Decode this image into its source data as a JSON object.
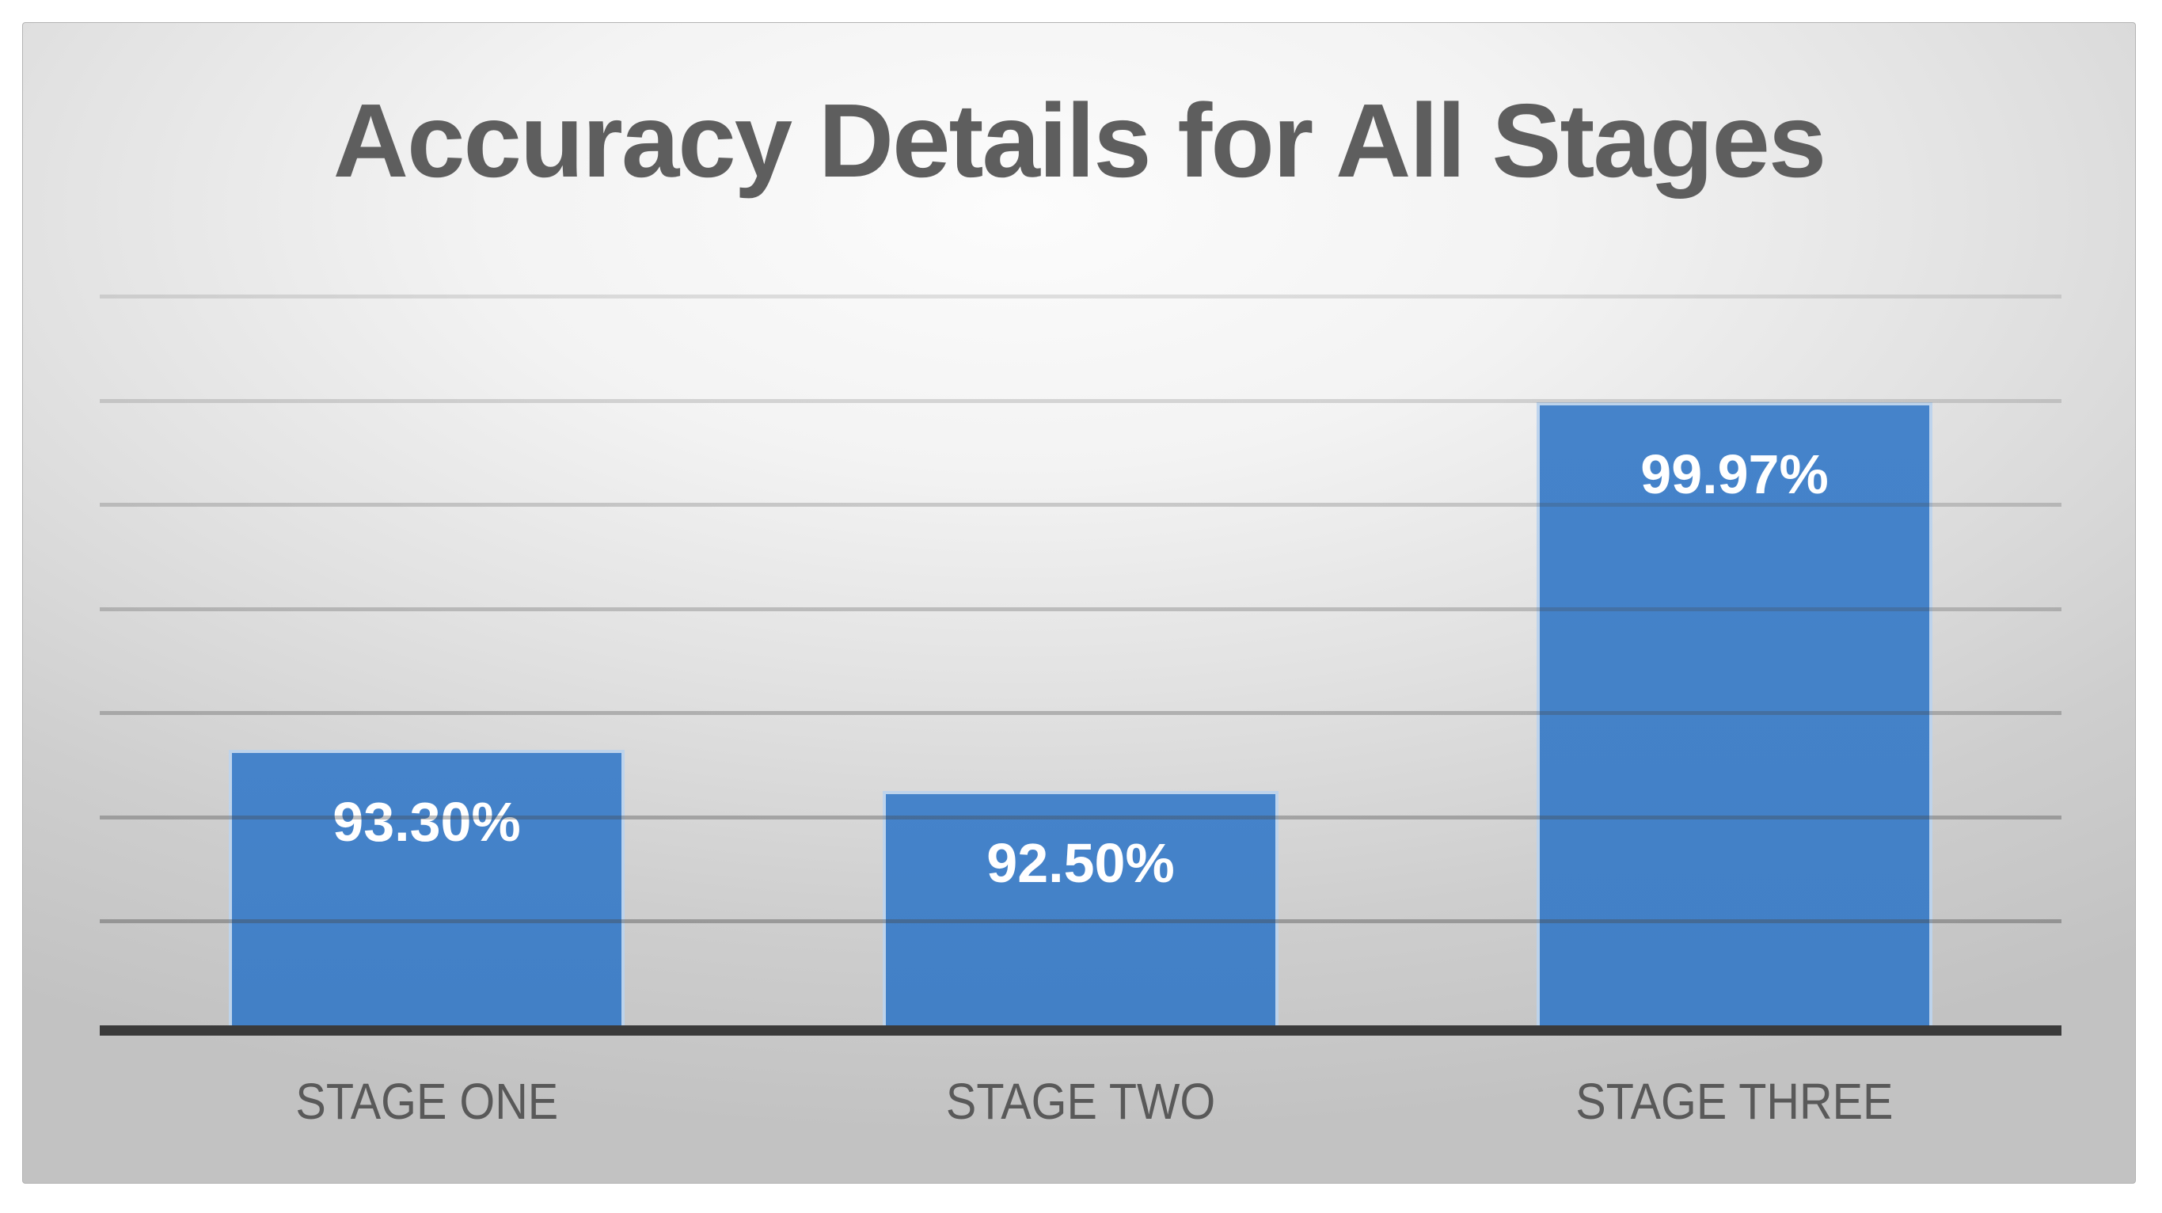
{
  "chart_data": {
    "type": "bar",
    "title": "Accuracy Details for All Stages",
    "categories": [
      "STAGE ONE",
      "STAGE TWO",
      "STAGE THREE"
    ],
    "values": [
      93.3,
      92.5,
      99.97
    ],
    "data_labels": [
      "93.30%",
      "92.50%",
      "99.97%"
    ],
    "xlabel": "",
    "ylabel": "",
    "ylim": [
      88,
      102
    ],
    "gridline_step": 2,
    "grid": "horizontal-only",
    "legend_position": "none",
    "axis_tick_labels_visible": false,
    "colors": {
      "bar_fill": "#4381C7",
      "bar_edge": "rgba(255,255,255,0.65)",
      "data_label_text": "#FFFFFF",
      "gridline": "#464646",
      "axis_line": "#3A3A3A",
      "title_text": "#5E5E5E",
      "category_text": "#595959",
      "slide_center": "#FCFCFC",
      "slide_edge": "#C2C2C2",
      "page_background": "#FFFFFF"
    }
  }
}
